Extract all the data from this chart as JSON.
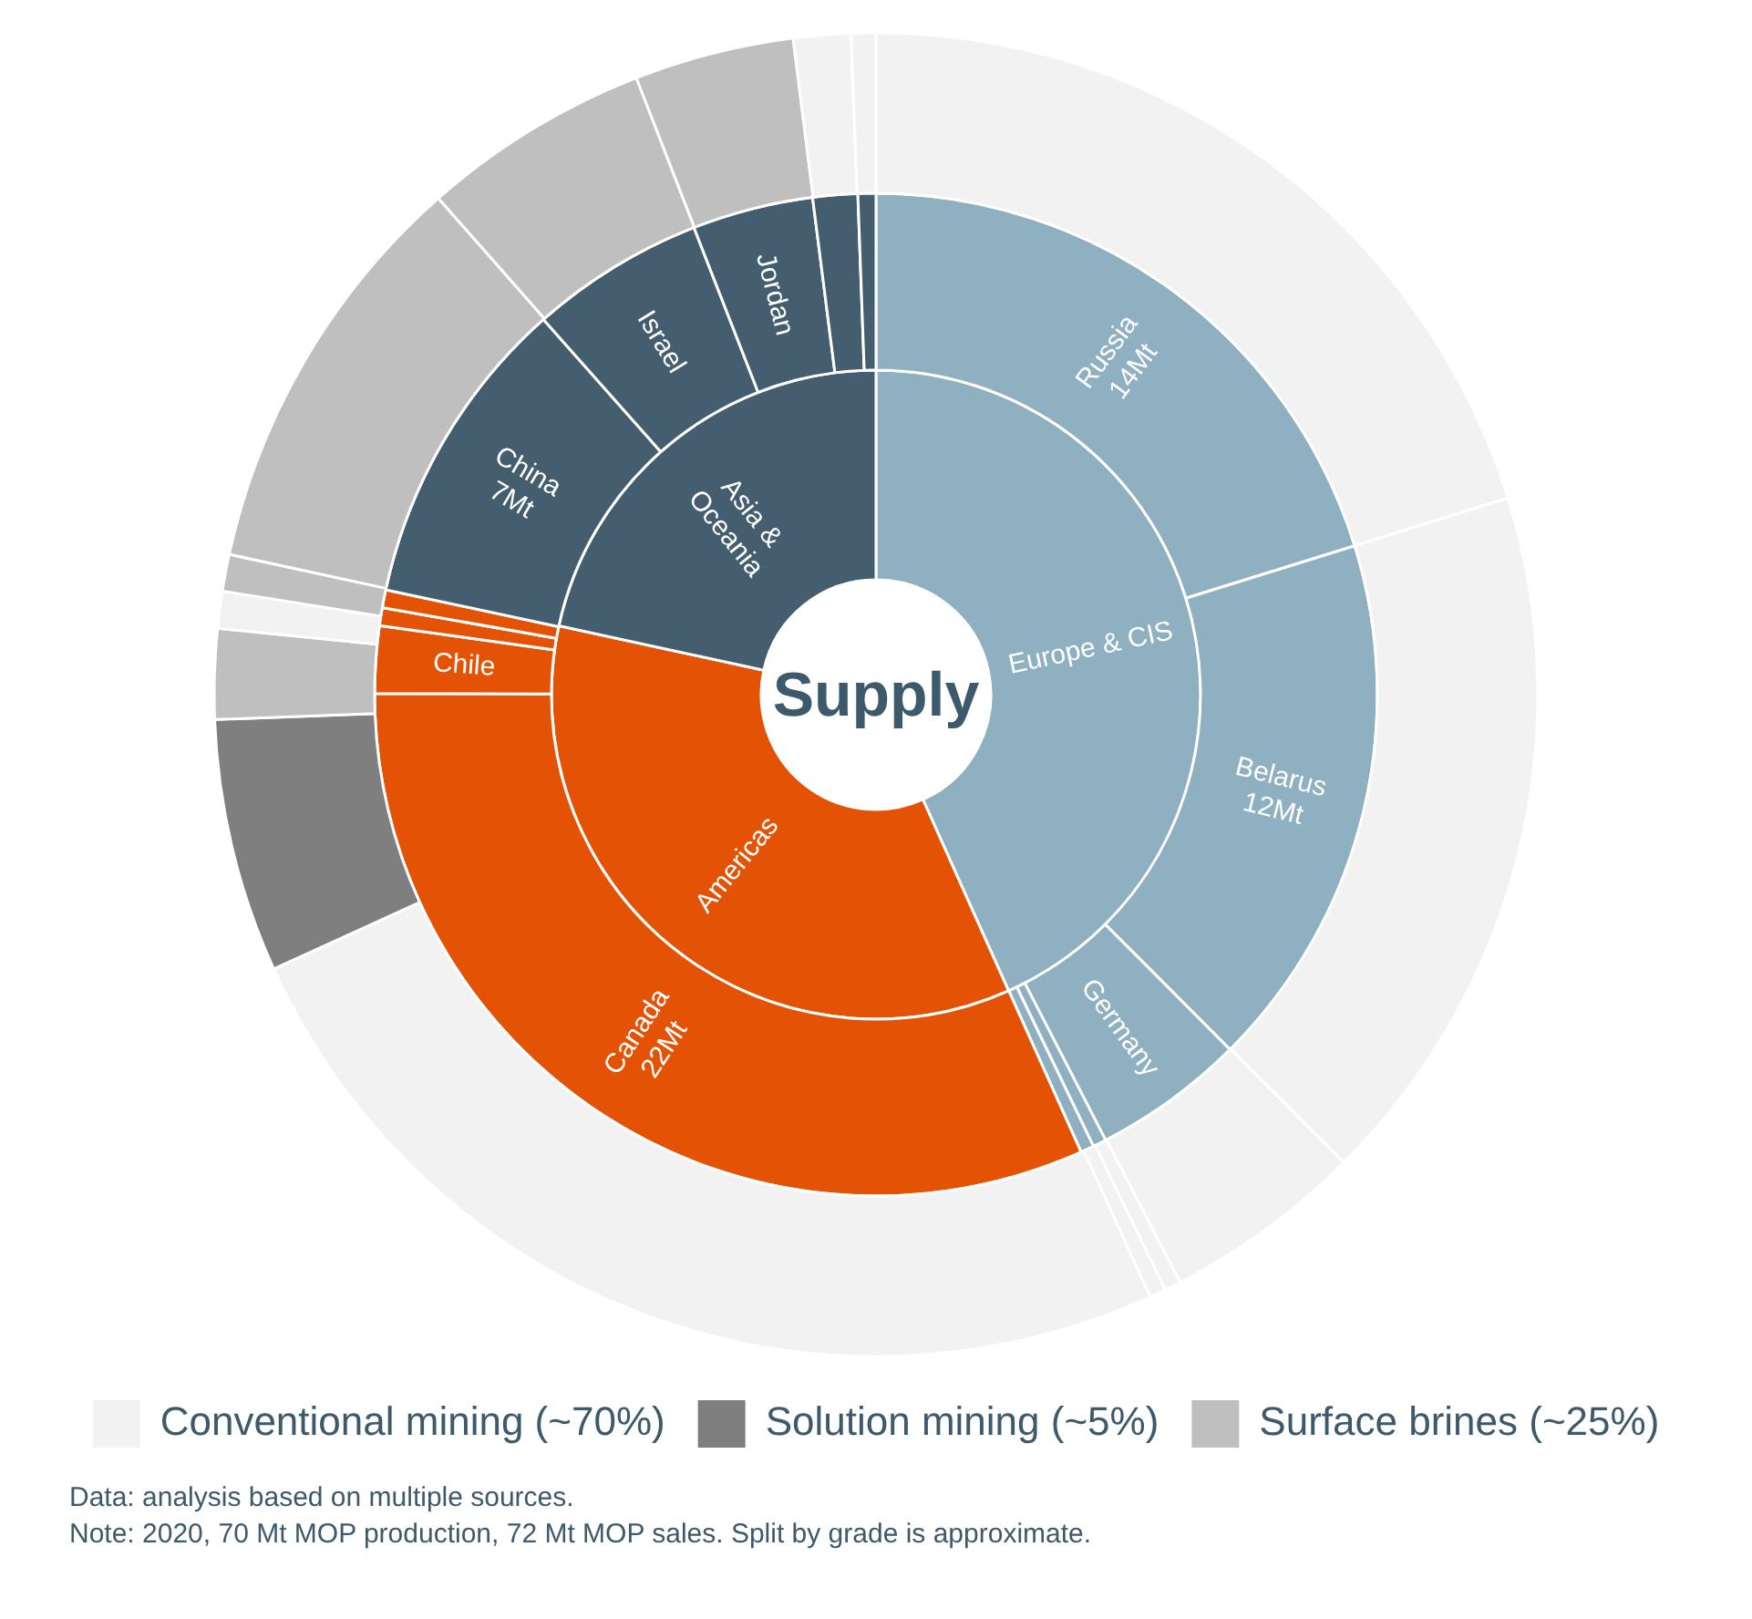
{
  "chart_data": [
    {
      "type": "donut",
      "title": "Supply",
      "categories": [
        "Europe & CIS",
        "Americas",
        "Asia & Oceania"
      ],
      "values": [
        43.3,
        35.1,
        21.6
      ],
      "colors": [
        "#8fb0c0",
        "#e35205",
        "#445e70"
      ]
    },
    {
      "type": "donut",
      "categories": [
        "Russia",
        "Belarus",
        "Germany",
        null,
        null,
        "Canada",
        "Chile",
        null,
        null,
        "China",
        "Israel",
        "Jordan",
        null,
        null
      ],
      "values": [
        14,
        12,
        3.4,
        0.3,
        0.3,
        22,
        1.5,
        0.4,
        0.4,
        7,
        3.9,
        2.7,
        1.0,
        0.4
      ],
      "value_labels": [
        "14Mt",
        "12Mt",
        null,
        null,
        null,
        "22Mt",
        null,
        null,
        null,
        "7Mt",
        null,
        null,
        null,
        null
      ],
      "colors": [
        "#8fb0c0",
        "#8fb0c0",
        "#8fb0c0",
        "#8fb0c0",
        "#8fb0c0",
        "#e35205",
        "#e35205",
        "#e35205",
        "#e35205",
        "#445e70",
        "#445e70",
        "#445e70",
        "#445e70",
        "#445e70"
      ]
    },
    {
      "type": "donut",
      "legend": "bottom",
      "categories": [
        "Conventional mining (~70%)",
        null,
        null,
        null,
        null,
        null,
        "Solution mining (~5%)",
        "Surface brines (~25%)",
        null,
        null,
        null,
        null,
        null,
        null,
        null
      ],
      "values": [
        20.2,
        17.3,
        4.9,
        0.4,
        0.4,
        25.0,
        6.2,
        2.2,
        0.9,
        0.9,
        10.1,
        5.6,
        3.9,
        1.4,
        0.6
      ],
      "colors": [
        "#f2f2f2",
        "#f2f2f2",
        "#f2f2f2",
        "#f2f2f2",
        "#f2f2f2",
        "#f2f2f2",
        "#7f7f7f",
        "#bfbfbf",
        "#f2f2f2",
        "#bfbfbf",
        "#bfbfbf",
        "#bfbfbf",
        "#bfbfbf",
        "#f2f2f2",
        "#f2f2f2"
      ],
      "annotations": [
        "Data: analysis based on multiple sources.",
        "Note: 2020, 70 Mt MOP production, 72 Mt MOP sales. Split by grade is approximate."
      ]
    }
  ]
}
